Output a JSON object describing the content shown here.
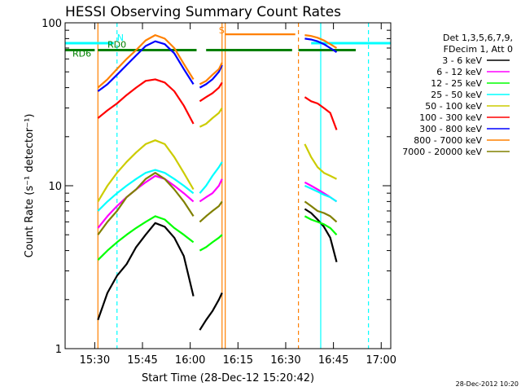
{
  "chart_data": {
    "type": "line",
    "title": "HESSI Observing Summary Count Rates",
    "xlabel": "Start Time (28-Dec-12 15:20:42)",
    "ylabel": "Count Rate (s⁻¹ detector⁻¹)",
    "ylog": true,
    "xlim": [
      "15:20:42",
      "17:03:00"
    ],
    "ylim": [
      1,
      100
    ],
    "x_ticks": [
      "15:30",
      "15:45",
      "16:00",
      "16:15",
      "16:30",
      "16:45",
      "17:00"
    ],
    "y_ticks": [
      "1",
      "10",
      "100"
    ],
    "legend_header": [
      "Det 1,3,5,6,7,9,",
      "FDecim 1, Att 0"
    ],
    "legend_position": "right",
    "series": [
      {
        "name": "3 - 6 keV",
        "color": "#000000",
        "segments": [
          {
            "x": [
              "15:31",
              "15:34",
              "15:37",
              "15:40",
              "15:43",
              "15:46",
              "15:49",
              "15:52",
              "15:55",
              "15:58",
              "16:01"
            ],
            "y": [
              1.5,
              2.2,
              2.8,
              3.3,
              4.2,
              5.0,
              5.9,
              5.6,
              4.8,
              3.7,
              2.1
            ]
          },
          {
            "x": [
              "16:03",
              "16:05",
              "16:07",
              "16:09",
              "16:10"
            ],
            "y": [
              1.3,
              1.5,
              1.7,
              2.0,
              2.2
            ]
          },
          {
            "x": [
              "16:36",
              "16:38",
              "16:40",
              "16:42",
              "16:44",
              "16:46"
            ],
            "y": [
              7.2,
              6.8,
              6.2,
              5.6,
              4.8,
              3.4
            ]
          }
        ]
      },
      {
        "name": "6 - 12 keV",
        "color": "#ff00ff",
        "segments": [
          {
            "x": [
              "15:31",
              "15:34",
              "15:37",
              "15:40",
              "15:43",
              "15:46",
              "15:49",
              "15:52",
              "15:55",
              "15:58",
              "16:01"
            ],
            "y": [
              5.5,
              6.5,
              7.5,
              8.5,
              9.5,
              10.5,
              11.5,
              11.0,
              10.0,
              9.0,
              8.0
            ]
          },
          {
            "x": [
              "16:03",
              "16:05",
              "16:07",
              "16:09",
              "16:10"
            ],
            "y": [
              8.0,
              8.5,
              9.0,
              10.0,
              11.0
            ]
          },
          {
            "x": [
              "16:36",
              "16:38",
              "16:40",
              "16:42",
              "16:44",
              "16:46"
            ],
            "y": [
              10.5,
              10.0,
              9.5,
              9.0,
              8.5,
              8.0
            ]
          }
        ]
      },
      {
        "name": "12 - 25 keV",
        "color": "#00ff00",
        "segments": [
          {
            "x": [
              "15:31",
              "15:34",
              "15:37",
              "15:40",
              "15:43",
              "15:46",
              "15:49",
              "15:52",
              "15:55",
              "15:58",
              "16:01"
            ],
            "y": [
              3.5,
              4.0,
              4.5,
              5.0,
              5.5,
              6.0,
              6.5,
              6.2,
              5.5,
              5.0,
              4.5
            ]
          },
          {
            "x": [
              "16:03",
              "16:05",
              "16:07",
              "16:09",
              "16:10"
            ],
            "y": [
              4.0,
              4.2,
              4.5,
              4.8,
              5.0
            ]
          },
          {
            "x": [
              "16:36",
              "16:38",
              "16:40",
              "16:42",
              "16:44",
              "16:46"
            ],
            "y": [
              6.5,
              6.2,
              6.0,
              5.8,
              5.5,
              5.0
            ]
          }
        ]
      },
      {
        "name": "25 - 50 keV",
        "color": "#00ffff",
        "segments": [
          {
            "x": [
              "15:31",
              "15:34",
              "15:37",
              "15:40",
              "15:43",
              "15:46",
              "15:49",
              "15:52",
              "15:55",
              "15:58",
              "16:01"
            ],
            "y": [
              7.0,
              8.0,
              9.0,
              10.0,
              11.0,
              12.0,
              12.5,
              12.0,
              11.0,
              10.0,
              9.0
            ]
          },
          {
            "x": [
              "16:03",
              "16:05",
              "16:07",
              "16:09",
              "16:10"
            ],
            "y": [
              9.0,
              10.0,
              11.5,
              13.0,
              14.0
            ]
          },
          {
            "x": [
              "16:36",
              "16:38",
              "16:40",
              "16:42",
              "16:44",
              "16:46"
            ],
            "y": [
              10.0,
              9.6,
              9.2,
              8.8,
              8.5,
              8.0
            ]
          }
        ]
      },
      {
        "name": "50 - 100 keV",
        "color": "#cccc00",
        "segments": [
          {
            "x": [
              "15:31",
              "15:34",
              "15:37",
              "15:40",
              "15:43",
              "15:46",
              "15:49",
              "15:52",
              "15:55",
              "15:58",
              "16:01"
            ],
            "y": [
              8.0,
              10.0,
              12.0,
              14.0,
              16.0,
              18.0,
              19.0,
              18.0,
              15.0,
              12.0,
              9.5
            ]
          },
          {
            "x": [
              "16:03",
              "16:05",
              "16:07",
              "16:09",
              "16:10"
            ],
            "y": [
              23.0,
              24.0,
              26.0,
              28.0,
              30.0
            ]
          },
          {
            "x": [
              "16:36",
              "16:38",
              "16:40",
              "16:42",
              "16:44",
              "16:46"
            ],
            "y": [
              18.0,
              15.0,
              13.0,
              12.0,
              11.5,
              11.0
            ]
          }
        ]
      },
      {
        "name": "100 - 300 keV",
        "color": "#ff0000",
        "segments": [
          {
            "x": [
              "15:31",
              "15:34",
              "15:37",
              "15:40",
              "15:43",
              "15:46",
              "15:49",
              "15:52",
              "15:55",
              "15:58",
              "16:01"
            ],
            "y": [
              26.0,
              29.0,
              32.0,
              36.0,
              40.0,
              44.0,
              45.0,
              43.0,
              38.0,
              31.0,
              24.0
            ]
          },
          {
            "x": [
              "16:03",
              "16:05",
              "16:07",
              "16:09",
              "16:10"
            ],
            "y": [
              33.0,
              35.0,
              37.0,
              40.0,
              43.0
            ]
          },
          {
            "x": [
              "16:36",
              "16:38",
              "16:40",
              "16:42",
              "16:44",
              "16:46"
            ],
            "y": [
              35.0,
              33.0,
              32.0,
              30.0,
              28.0,
              22.0
            ]
          }
        ]
      },
      {
        "name": "300 - 800 keV",
        "color": "#0000ff",
        "segments": [
          {
            "x": [
              "15:31",
              "15:34",
              "15:37",
              "15:40",
              "15:43",
              "15:46",
              "15:49",
              "15:52",
              "15:55",
              "15:58",
              "16:01"
            ],
            "y": [
              38.0,
              42.0,
              48.0,
              55.0,
              63.0,
              72.0,
              77.0,
              74.0,
              65.0,
              52.0,
              42.0
            ]
          },
          {
            "x": [
              "16:03",
              "16:05",
              "16:07",
              "16:09",
              "16:10"
            ],
            "y": [
              40.0,
              42.0,
              45.0,
              50.0,
              55.0
            ]
          },
          {
            "x": [
              "16:36",
              "16:38",
              "16:40",
              "16:42",
              "16:44",
              "16:46"
            ],
            "y": [
              80.0,
              79.0,
              77.0,
              74.0,
              70.0,
              66.0
            ]
          }
        ]
      },
      {
        "name": "800 - 7000 keV",
        "color": "#ff8000",
        "segments": [
          {
            "x": [
              "15:31",
              "15:34",
              "15:37",
              "15:40",
              "15:43",
              "15:46",
              "15:49",
              "15:52",
              "15:55",
              "15:58",
              "16:01"
            ],
            "y": [
              40.0,
              45.0,
              52.0,
              60.0,
              68.0,
              78.0,
              84.0,
              80.0,
              70.0,
              56.0,
              45.0
            ]
          },
          {
            "x": [
              "16:03",
              "16:05",
              "16:07",
              "16:09",
              "16:10"
            ],
            "y": [
              42.0,
              44.0,
              48.0,
              52.0,
              57.0
            ]
          },
          {
            "x": [
              "16:11",
              "16:20",
              "16:30",
              "16:33"
            ],
            "y": [
              85.0,
              85.0,
              85.0,
              85.0
            ]
          },
          {
            "x": [
              "16:36",
              "16:38",
              "16:40",
              "16:42",
              "16:44",
              "16:46"
            ],
            "y": [
              84.0,
              83.0,
              81.0,
              78.0,
              74.0,
              70.0
            ]
          }
        ]
      },
      {
        "name": "7000 - 20000 keV",
        "color": "#808000",
        "segments": [
          {
            "x": [
              "15:31",
              "15:34",
              "15:37",
              "15:40",
              "15:43",
              "15:46",
              "15:49",
              "15:52",
              "15:55",
              "15:58",
              "16:01"
            ],
            "y": [
              5.0,
              6.0,
              7.0,
              8.5,
              9.5,
              11.0,
              12.0,
              11.0,
              9.5,
              8.0,
              6.5
            ]
          },
          {
            "x": [
              "16:03",
              "16:05",
              "16:07",
              "16:09",
              "16:10"
            ],
            "y": [
              6.0,
              6.5,
              7.0,
              7.5,
              8.0
            ]
          },
          {
            "x": [
              "16:36",
              "16:38",
              "16:40",
              "16:42",
              "16:44",
              "16:46"
            ],
            "y": [
              8.0,
              7.5,
              7.0,
              6.8,
              6.5,
              6.0
            ]
          }
        ]
      }
    ],
    "state_bars": [
      {
        "color": "#00ffff",
        "y": 75,
        "segments": [
          [
            "15:20:42",
            "15:36"
          ],
          [
            "16:38",
            "17:03"
          ]
        ],
        "label": "N",
        "label_x": "15:37"
      },
      {
        "color": "#008000",
        "y": 68,
        "segments": [
          [
            "15:20:42",
            "15:30"
          ],
          [
            "15:31",
            "16:02"
          ],
          [
            "16:05",
            "16:32"
          ],
          [
            "16:34",
            "16:52"
          ]
        ],
        "label": "RD0",
        "label_x": "15:34"
      }
    ],
    "annotations": [
      {
        "text": "RD6",
        "x": "15:23",
        "y": 62,
        "color": "#008000"
      },
      {
        "text": "S",
        "x": "16:09",
        "y": 86,
        "color": "#ff8000"
      }
    ],
    "vlines": [
      {
        "x": "15:31",
        "color": "#ff8000",
        "style": "solid"
      },
      {
        "x": "15:37",
        "color": "#00ffff",
        "style": "dashed"
      },
      {
        "x": "16:10",
        "color": "#ff8000",
        "style": "solid"
      },
      {
        "x": "16:11",
        "color": "#ff8000",
        "style": "solid"
      },
      {
        "x": "16:34",
        "color": "#ff8000",
        "style": "dashed"
      },
      {
        "x": "16:41",
        "color": "#00ffff",
        "style": "solid"
      },
      {
        "x": "16:56",
        "color": "#00ffff",
        "style": "dashed"
      }
    ]
  },
  "timestamp": "28-Dec-2012 10:20"
}
